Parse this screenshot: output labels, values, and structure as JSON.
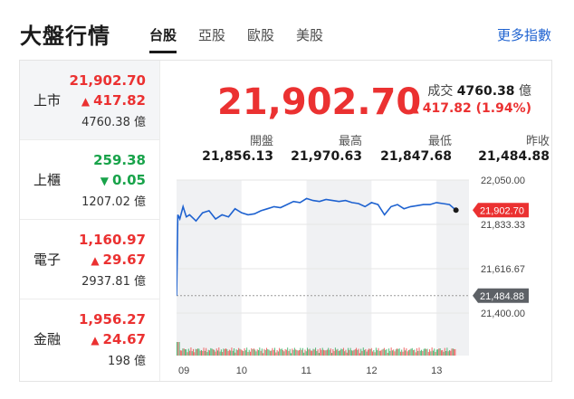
{
  "header": {
    "title": "大盤行情",
    "tabs": [
      {
        "label": "台股",
        "active": true
      },
      {
        "label": "亞股",
        "active": false
      },
      {
        "label": "歐股",
        "active": false
      },
      {
        "label": "美股",
        "active": false
      }
    ],
    "more_label": "更多指數"
  },
  "indices": [
    {
      "name": "上市",
      "price": "21,902.70",
      "change": "417.82",
      "direction": "up",
      "volume": "4760.38 億",
      "active": true
    },
    {
      "name": "上櫃",
      "price": "259.38",
      "change": "0.05",
      "direction": "down",
      "volume": "1207.02 億",
      "active": false
    },
    {
      "name": "電子",
      "price": "1,160.97",
      "change": "29.67",
      "direction": "up",
      "volume": "2937.81 億",
      "active": false
    },
    {
      "name": "金融",
      "price": "1,956.27",
      "change": "24.67",
      "direction": "up",
      "volume": "198 億",
      "active": false
    }
  ],
  "detail": {
    "price": "21,902.70",
    "volume_label": "成交",
    "volume_value": "4760.38",
    "volume_unit": "億",
    "change": "417.82 (1.94%)",
    "stats": [
      {
        "label": "開盤",
        "value": "21,856.13"
      },
      {
        "label": "最高",
        "value": "21,970.63"
      },
      {
        "label": "最低",
        "value": "21,847.68"
      },
      {
        "label": "昨收",
        "value": "21,484.88"
      }
    ]
  },
  "colors": {
    "up": "#eb3131",
    "down": "#18a34a",
    "line": "#1e62d0",
    "accent_link": "#1e62d0"
  },
  "icons": {
    "up": "triangle-up-icon",
    "down": "triangle-down-icon"
  },
  "chart_data": {
    "type": "line",
    "x_tick_labels": [
      "09",
      "10",
      "11",
      "12",
      "13"
    ],
    "y_tick_labels": [
      "22,050.00",
      "21,833.33",
      "21,616.67",
      "21,400.00"
    ],
    "ylim": [
      21400,
      22050
    ],
    "xlim": [
      9.0,
      13.5
    ],
    "current_price": 21902.7,
    "current_label": "21,902.70",
    "prev_close": 21484.88,
    "prev_close_label": "21,484.88",
    "series": [
      {
        "x": [
          9.0,
          9.02,
          9.05,
          9.1,
          9.15,
          9.2,
          9.3,
          9.4,
          9.5,
          9.6,
          9.7,
          9.8,
          9.9,
          10.0,
          10.1,
          10.2,
          10.3,
          10.4,
          10.5,
          10.6,
          10.7,
          10.8,
          10.9,
          11.0,
          11.1,
          11.2,
          11.3,
          11.4,
          11.5,
          11.6,
          11.7,
          11.8,
          11.9,
          12.0,
          12.1,
          12.2,
          12.3,
          12.4,
          12.5,
          12.6,
          12.7,
          12.8,
          12.9,
          13.0,
          13.1,
          13.2,
          13.3
        ],
        "values": [
          21484.9,
          21880,
          21860,
          21920,
          21870,
          21880,
          21850,
          21890,
          21900,
          21860,
          21880,
          21870,
          21910,
          21890,
          21880,
          21885,
          21900,
          21910,
          21920,
          21915,
          21930,
          21945,
          21940,
          21960,
          21950,
          21945,
          21955,
          21950,
          21945,
          21950,
          21940,
          21935,
          21920,
          21940,
          21930,
          21880,
          21920,
          21930,
          21910,
          21920,
          21925,
          21930,
          21930,
          21940,
          21935,
          21930,
          21902.7
        ]
      }
    ],
    "volume_bars": 240,
    "shaded_hours": [
      [
        9.0,
        10.0
      ],
      [
        11.0,
        12.0
      ],
      [
        13.0,
        13.5
      ]
    ]
  }
}
